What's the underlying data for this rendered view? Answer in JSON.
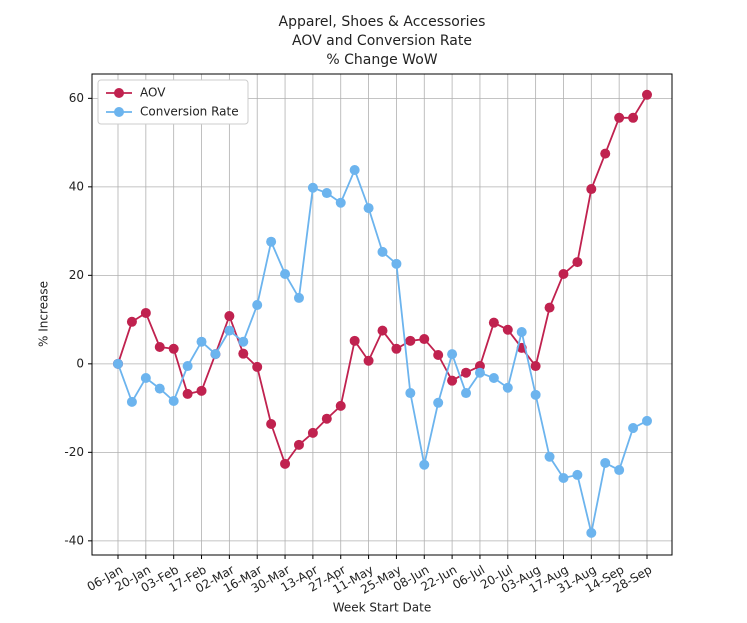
{
  "chart_data": {
    "type": "line",
    "title": [
      "Apparel, Shoes & Accessories",
      "AOV and Conversion Rate",
      "% Change WoW"
    ],
    "xlabel": "Week Start Date",
    "ylabel": "% Increase",
    "categories": [
      "06-Jan",
      null,
      "20-Jan",
      null,
      "03-Feb",
      null,
      "17-Feb",
      null,
      "02-Mar",
      null,
      "16-Mar",
      null,
      "30-Mar",
      null,
      "13-Apr",
      null,
      "27-Apr",
      null,
      "11-May",
      null,
      "25-May",
      null,
      "08-Jun",
      null,
      "22-Jun",
      null,
      "06-Jul",
      null,
      "20-Jul",
      null,
      "03-Aug",
      null,
      "17-Aug",
      null,
      "31-Aug",
      null,
      "14-Sep",
      null,
      "28-Sep"
    ],
    "series": [
      {
        "name": "AOV",
        "color": "#c0224f",
        "values": [
          0,
          9.5,
          11.5,
          3.8,
          3.4,
          -6.8,
          -6.1,
          2.2,
          10.8,
          2.3,
          -0.7,
          -13.6,
          -22.6,
          -18.3,
          -15.6,
          -12.4,
          -9.5,
          5.2,
          0.7,
          7.5,
          3.4,
          5.2,
          5.6,
          2.0,
          -3.8,
          -2.0,
          -0.5,
          9.3,
          7.7,
          3.6,
          -0.5,
          12.7,
          20.3,
          23.0,
          39.5,
          47.5,
          55.6,
          55.6,
          60.8
        ]
      },
      {
        "name": "Conversion Rate",
        "color": "#6cb4ee",
        "values": [
          0,
          -8.6,
          -3.2,
          -5.6,
          -8.4,
          -0.5,
          5.0,
          2.2,
          7.5,
          5.0,
          13.3,
          27.6,
          20.3,
          14.9,
          39.8,
          38.6,
          36.4,
          43.8,
          35.2,
          25.3,
          22.6,
          -6.6,
          -22.8,
          -8.8,
          2.2,
          -6.6,
          -2.0,
          -3.2,
          -5.4,
          7.2,
          -7.0,
          -21.0,
          -25.8,
          -25.1,
          -38.2,
          -22.4,
          -24.0,
          -14.5,
          -12.9
        ]
      }
    ],
    "ylim": [
      -43.2,
      65.5
    ],
    "yticks": [
      -40,
      -20,
      0,
      20,
      40,
      60
    ],
    "grid": true,
    "legend": "upper left"
  }
}
